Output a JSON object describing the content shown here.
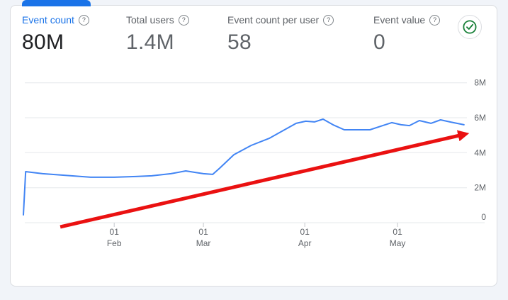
{
  "card": {
    "name": "metrics-summary-card"
  },
  "icons": {
    "help_glyph": "?",
    "check_icon": "check-circle"
  },
  "colors": {
    "accent_blue": "#1a73e8",
    "line_blue": "#4285f4",
    "arrow_red": "#ea1111",
    "text_dark": "#202124",
    "text_gray": "#5f6368",
    "grid_gray": "#e6e8eb",
    "border_gray": "#dadce0",
    "check_green": "#188038",
    "page_bg": "#f1f4f9"
  },
  "metrics": [
    {
      "label": "Event count",
      "value": "80M",
      "selected": true
    },
    {
      "label": "Total users",
      "value": "1.4M",
      "selected": false
    },
    {
      "label": "Event count per user",
      "value": "58",
      "selected": false
    },
    {
      "label": "Event value",
      "value": "0",
      "selected": false
    }
  ],
  "chart_data": {
    "type": "line",
    "title": "",
    "series_name": "Event count",
    "x_unit": "days since Jan 4",
    "y_unit": "events (millions)",
    "ylim": [
      0,
      8
    ],
    "grid": true,
    "legend": "none",
    "y_axis_side": "right",
    "y_ticks": [
      {
        "v": 0,
        "label": "0"
      },
      {
        "v": 2,
        "label": "2M"
      },
      {
        "v": 4,
        "label": "4M"
      },
      {
        "v": 6,
        "label": "6M"
      },
      {
        "v": 8,
        "label": "8M"
      }
    ],
    "x_ticks": [
      {
        "t": 28.3,
        "line1": "01",
        "line2": "Feb"
      },
      {
        "t": 56.1,
        "line1": "01",
        "line2": "Mar"
      },
      {
        "t": 87.7,
        "line1": "01",
        "line2": "Apr"
      },
      {
        "t": 116.6,
        "line1": "01",
        "line2": "May"
      }
    ],
    "series": [
      {
        "name": "Event count",
        "color": "#4285f4",
        "points": [
          [
            0,
            0.45
          ],
          [
            0.7,
            2.92
          ],
          [
            6,
            2.8
          ],
          [
            15,
            2.68
          ],
          [
            21,
            2.6
          ],
          [
            28.3,
            2.6
          ],
          [
            35,
            2.64
          ],
          [
            40,
            2.68
          ],
          [
            46,
            2.8
          ],
          [
            50.6,
            2.96
          ],
          [
            53.4,
            2.88
          ],
          [
            56.1,
            2.8
          ],
          [
            59,
            2.76
          ],
          [
            61.2,
            3.12
          ],
          [
            65.6,
            3.89
          ],
          [
            71,
            4.42
          ],
          [
            76.6,
            4.82
          ],
          [
            81,
            5.27
          ],
          [
            85,
            5.68
          ],
          [
            88,
            5.8
          ],
          [
            90.7,
            5.76
          ],
          [
            93.4,
            5.92
          ],
          [
            96.5,
            5.6
          ],
          [
            100,
            5.31
          ],
          [
            104,
            5.31
          ],
          [
            108,
            5.31
          ],
          [
            112,
            5.55
          ],
          [
            114.8,
            5.72
          ],
          [
            117.7,
            5.6
          ],
          [
            120.3,
            5.55
          ],
          [
            123.4,
            5.84
          ],
          [
            127,
            5.68
          ],
          [
            130,
            5.88
          ],
          [
            134,
            5.72
          ],
          [
            137.3,
            5.6
          ]
        ]
      }
    ],
    "annotations": [
      {
        "type": "arrow",
        "color": "#ea1111",
        "from": [
          11.5,
          -0.24
        ],
        "to": [
          136.2,
          5.0
        ]
      }
    ]
  }
}
